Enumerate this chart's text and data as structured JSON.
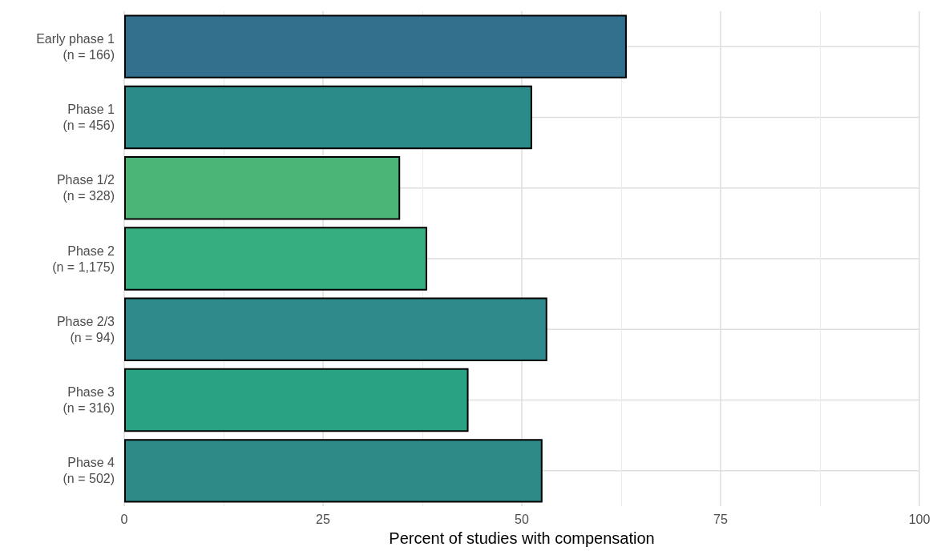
{
  "chart_data": {
    "type": "bar",
    "orientation": "horizontal",
    "xlabel": "Percent of studies with compensation",
    "categories": [
      "Early phase 1\n(n = 166)",
      "Phase 1\n(n = 456)",
      "Phase 1/2\n(n = 328)",
      "Phase 2\n(n = 1,175)",
      "Phase 2/3\n(n = 94)",
      "Phase 3\n(n = 316)",
      "Phase 4\n(n = 502)"
    ],
    "values": [
      63.2,
      51.3,
      34.7,
      38.1,
      53.2,
      43.3,
      52.6
    ],
    "colors": [
      "#326f8c",
      "#2a8b88",
      "#4ab577",
      "#37ae7f",
      "#2e8a8b",
      "#27a384",
      "#2d8a87"
    ],
    "xlim": [
      0,
      100
    ],
    "xticks": [
      0,
      25,
      50,
      75,
      100
    ],
    "grid": true
  }
}
